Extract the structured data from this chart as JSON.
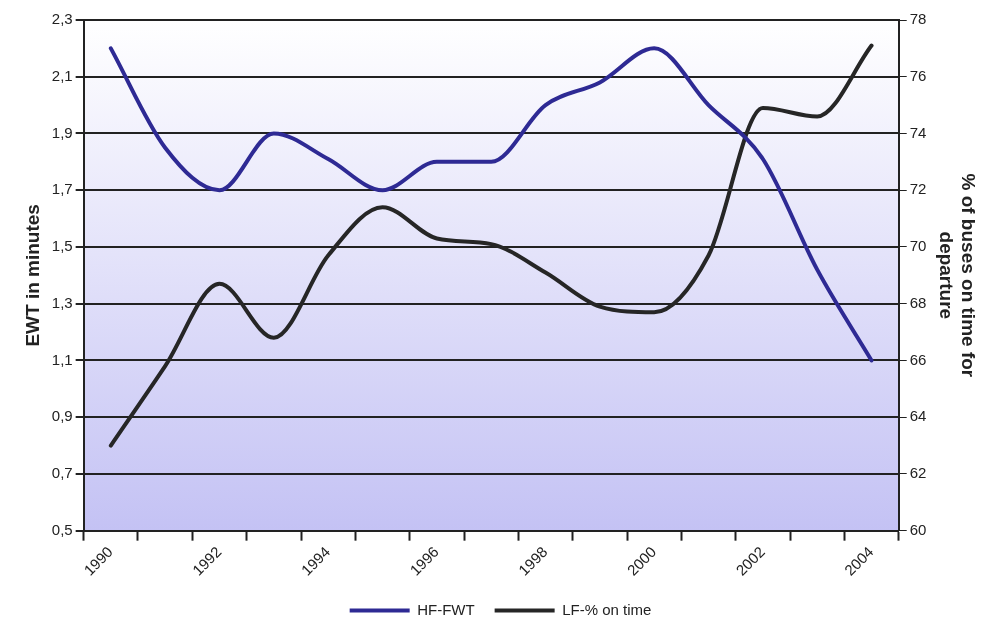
{
  "chart_data": {
    "type": "line",
    "xlabel": null,
    "ylabel": "EWT in minutes",
    "y2label": "% of buses on time for departure",
    "categories": [
      "1990",
      null,
      "1992",
      null,
      "1994",
      null,
      "1996",
      null,
      "1998",
      null,
      "2000",
      null,
      "2002",
      null,
      "2004"
    ],
    "series": [
      {
        "name": "HF-FWT",
        "color": "#2e2a94",
        "values": [
          2.2,
          1.85,
          1.7,
          1.9,
          1.81,
          1.7,
          1.8,
          1.8,
          2.0,
          2.08,
          2.2,
          2.0,
          1.81,
          1.42,
          1.1
        ]
      },
      {
        "name": "LF-% on time",
        "color": "#262626",
        "axis": "y2",
        "values": [
          63.0,
          65.8,
          68.7,
          66.8,
          69.7,
          71.4,
          70.3,
          70.1,
          69.1,
          67.9,
          67.7,
          69.7,
          74.9,
          74.6,
          77.1
        ]
      }
    ],
    "ylim": [
      0.5,
      2.3
    ],
    "yticks": [
      {
        "value": 0.5,
        "label": "0,5"
      },
      {
        "value": 0.7,
        "label": "0,7"
      },
      {
        "value": 0.9,
        "label": "0,9"
      },
      {
        "value": 1.1,
        "label": "1,1"
      },
      {
        "value": 1.3,
        "label": "1,3"
      },
      {
        "value": 1.5,
        "label": "1,5"
      },
      {
        "value": 1.7,
        "label": "1,7"
      },
      {
        "value": 1.9,
        "label": "1,9"
      },
      {
        "value": 2.1,
        "label": "2,1"
      },
      {
        "value": 2.3,
        "label": "2,3"
      }
    ],
    "y2lim": [
      60,
      78
    ],
    "y2ticks": [
      60,
      62,
      64,
      66,
      68,
      70,
      72,
      74,
      76,
      78
    ],
    "grid": "y",
    "legend": "bottom",
    "marker": "none",
    "line_style": "solid"
  }
}
